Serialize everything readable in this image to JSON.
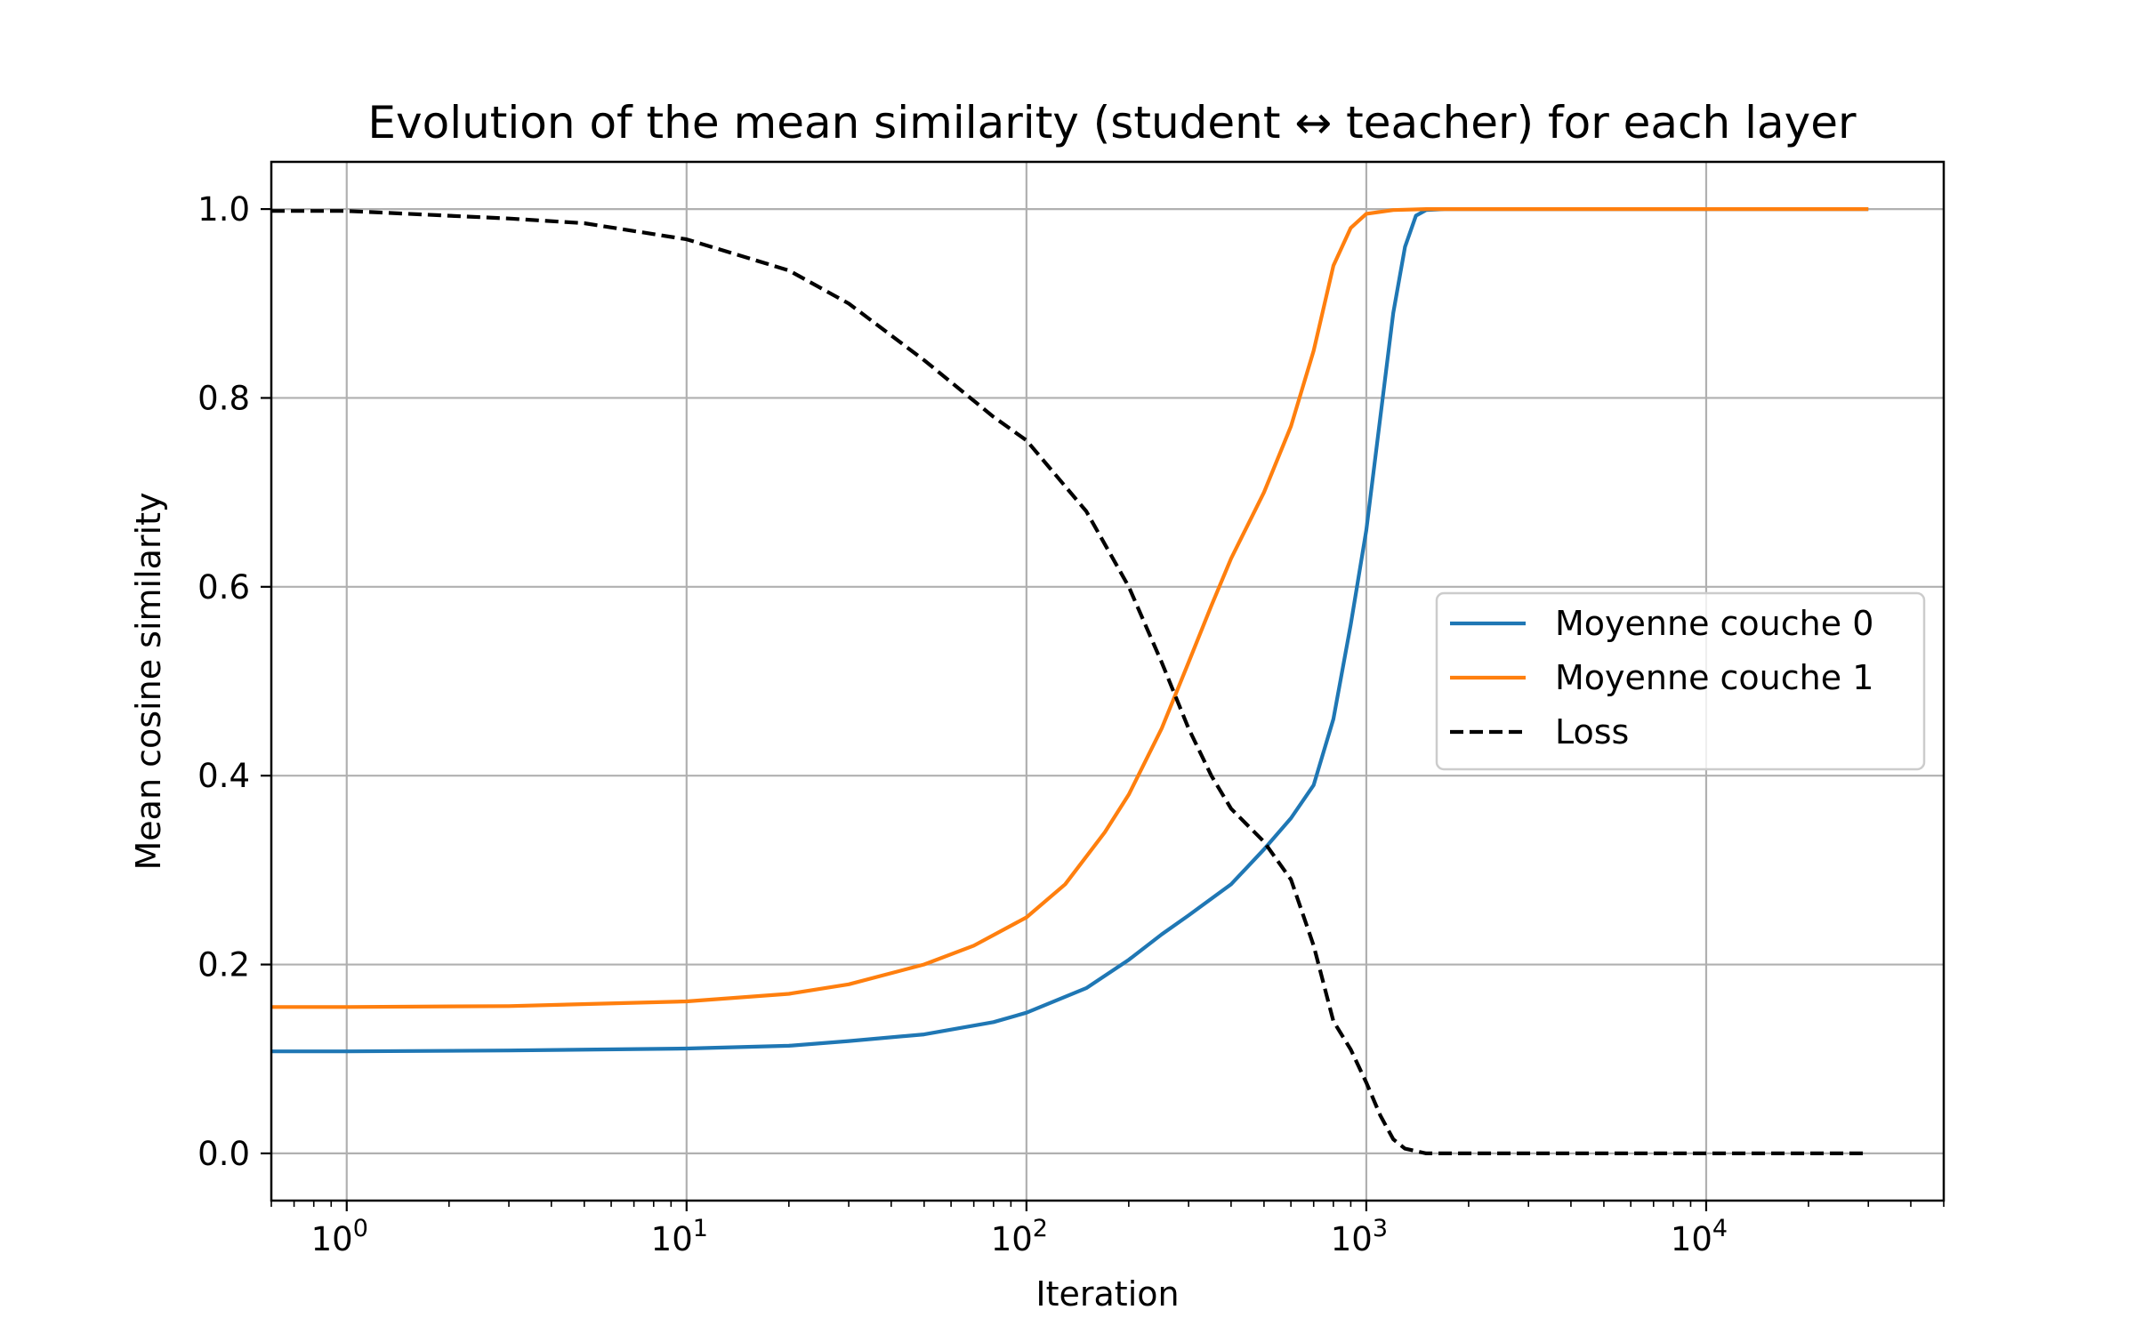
{
  "chart_data": {
    "type": "line",
    "title": "Evolution of the mean similarity (student ↔ teacher) for each layer",
    "xlabel": "Iteration",
    "ylabel": "Mean cosine similarity",
    "xscale": "log",
    "xlim": [
      0.6,
      50000
    ],
    "ylim": [
      -0.05,
      1.05
    ],
    "grid": true,
    "legend_position": "center-right",
    "x_tick_labels": [
      {
        "value": 1,
        "base": "10",
        "exp": "0"
      },
      {
        "value": 10,
        "base": "10",
        "exp": "1"
      },
      {
        "value": 100,
        "base": "10",
        "exp": "2"
      },
      {
        "value": 1000,
        "base": "10",
        "exp": "3"
      },
      {
        "value": 10000,
        "base": "10",
        "exp": "4"
      }
    ],
    "y_tick_labels": [
      {
        "value": 0.0,
        "label": "0.0"
      },
      {
        "value": 0.2,
        "label": "0.2"
      },
      {
        "value": 0.4,
        "label": "0.4"
      },
      {
        "value": 0.6,
        "label": "0.6"
      },
      {
        "value": 0.8,
        "label": "0.8"
      },
      {
        "value": 1.0,
        "label": "1.0"
      }
    ],
    "series": [
      {
        "name": "Moyenne couche 0",
        "color": "#1f77b4",
        "dash": "solid",
        "points": [
          [
            0.6,
            0.108
          ],
          [
            1,
            0.108
          ],
          [
            3,
            0.109
          ],
          [
            10,
            0.111
          ],
          [
            20,
            0.114
          ],
          [
            30,
            0.119
          ],
          [
            50,
            0.126
          ],
          [
            80,
            0.139
          ],
          [
            100,
            0.149
          ],
          [
            150,
            0.175
          ],
          [
            200,
            0.205
          ],
          [
            250,
            0.232
          ],
          [
            300,
            0.252
          ],
          [
            400,
            0.285
          ],
          [
            500,
            0.322
          ],
          [
            600,
            0.355
          ],
          [
            700,
            0.39
          ],
          [
            800,
            0.46
          ],
          [
            900,
            0.56
          ],
          [
            1000,
            0.66
          ],
          [
            1100,
            0.78
          ],
          [
            1200,
            0.89
          ],
          [
            1300,
            0.96
          ],
          [
            1400,
            0.993
          ],
          [
            1500,
            0.999
          ],
          [
            1700,
            1.0
          ],
          [
            3000,
            1.0
          ],
          [
            10000,
            1.0
          ],
          [
            30000,
            1.0
          ]
        ]
      },
      {
        "name": "Moyenne couche 1",
        "color": "#ff7f0e",
        "dash": "solid",
        "points": [
          [
            0.6,
            0.155
          ],
          [
            1,
            0.155
          ],
          [
            3,
            0.156
          ],
          [
            10,
            0.161
          ],
          [
            20,
            0.169
          ],
          [
            30,
            0.179
          ],
          [
            50,
            0.2
          ],
          [
            70,
            0.22
          ],
          [
            100,
            0.25
          ],
          [
            130,
            0.285
          ],
          [
            170,
            0.34
          ],
          [
            200,
            0.38
          ],
          [
            250,
            0.45
          ],
          [
            300,
            0.52
          ],
          [
            350,
            0.58
          ],
          [
            400,
            0.63
          ],
          [
            500,
            0.7
          ],
          [
            600,
            0.77
          ],
          [
            700,
            0.85
          ],
          [
            800,
            0.94
          ],
          [
            900,
            0.98
          ],
          [
            1000,
            0.995
          ],
          [
            1200,
            0.999
          ],
          [
            1500,
            1.0
          ],
          [
            3000,
            1.0
          ],
          [
            10000,
            1.0
          ],
          [
            30000,
            1.0
          ]
        ]
      },
      {
        "name": "Loss",
        "color": "#000000",
        "dash": "dashed",
        "points": [
          [
            0.6,
            0.998
          ],
          [
            1,
            0.998
          ],
          [
            3,
            0.99
          ],
          [
            5,
            0.985
          ],
          [
            10,
            0.968
          ],
          [
            20,
            0.935
          ],
          [
            30,
            0.9
          ],
          [
            50,
            0.84
          ],
          [
            80,
            0.78
          ],
          [
            100,
            0.755
          ],
          [
            150,
            0.68
          ],
          [
            200,
            0.6
          ],
          [
            250,
            0.52
          ],
          [
            300,
            0.45
          ],
          [
            350,
            0.4
          ],
          [
            400,
            0.365
          ],
          [
            500,
            0.33
          ],
          [
            600,
            0.29
          ],
          [
            700,
            0.22
          ],
          [
            800,
            0.14
          ],
          [
            900,
            0.11
          ],
          [
            1000,
            0.075
          ],
          [
            1100,
            0.04
          ],
          [
            1200,
            0.015
          ],
          [
            1300,
            0.005
          ],
          [
            1500,
            0.0
          ],
          [
            3000,
            0.0
          ],
          [
            10000,
            0.0
          ],
          [
            30000,
            0.0
          ]
        ]
      }
    ]
  }
}
